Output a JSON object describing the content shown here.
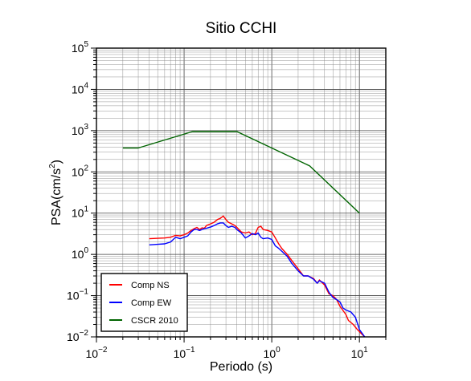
{
  "chart_data": {
    "type": "line",
    "title": "Sitio CCHI",
    "xlabel": "Periodo (s)",
    "ylabel_base": "PSA(cm/s",
    "ylabel_sup": "2",
    "ylabel_end": ")",
    "xscale": "log",
    "yscale": "log",
    "xlim": [
      0.01,
      20
    ],
    "ylim": [
      0.01,
      100000
    ],
    "grid": true,
    "legend_position": "bottom-left",
    "x_ticks": [
      {
        "value": 0.01,
        "base": "10",
        "exp": "−2"
      },
      {
        "value": 0.1,
        "base": "10",
        "exp": "−1"
      },
      {
        "value": 1,
        "base": "10",
        "exp": "0"
      },
      {
        "value": 10,
        "base": "10",
        "exp": "1"
      }
    ],
    "y_ticks": [
      {
        "value": 0.01,
        "base": "10",
        "exp": "−2"
      },
      {
        "value": 0.1,
        "base": "10",
        "exp": "−1"
      },
      {
        "value": 1,
        "base": "10",
        "exp": "0"
      },
      {
        "value": 10,
        "base": "10",
        "exp": "1"
      },
      {
        "value": 100,
        "base": "10",
        "exp": "2"
      },
      {
        "value": 1000,
        "base": "10",
        "exp": "3"
      },
      {
        "value": 10000,
        "base": "10",
        "exp": "4"
      },
      {
        "value": 100000,
        "base": "10",
        "exp": "5"
      }
    ],
    "series": [
      {
        "name": "Comp NS",
        "color": "#ff0000",
        "points": [
          [
            0.04,
            2.4
          ],
          [
            0.05,
            2.45
          ],
          [
            0.06,
            2.5
          ],
          [
            0.07,
            2.6
          ],
          [
            0.08,
            2.9
          ],
          [
            0.09,
            2.8
          ],
          [
            0.1,
            3.0
          ],
          [
            0.11,
            3.3
          ],
          [
            0.12,
            3.8
          ],
          [
            0.13,
            4.2
          ],
          [
            0.14,
            4.5
          ],
          [
            0.15,
            4.0
          ],
          [
            0.16,
            4.4
          ],
          [
            0.17,
            4.3
          ],
          [
            0.18,
            5.0
          ],
          [
            0.2,
            5.5
          ],
          [
            0.22,
            6.0
          ],
          [
            0.24,
            7.0
          ],
          [
            0.26,
            7.5
          ],
          [
            0.28,
            8.5
          ],
          [
            0.3,
            7.0
          ],
          [
            0.32,
            6.0
          ],
          [
            0.35,
            5.5
          ],
          [
            0.38,
            5.0
          ],
          [
            0.4,
            4.5
          ],
          [
            0.45,
            3.5
          ],
          [
            0.5,
            3.3
          ],
          [
            0.55,
            3.5
          ],
          [
            0.6,
            3.0
          ],
          [
            0.65,
            3.2
          ],
          [
            0.7,
            4.5
          ],
          [
            0.75,
            4.8
          ],
          [
            0.8,
            4.0
          ],
          [
            0.9,
            3.8
          ],
          [
            1.0,
            3.5
          ],
          [
            1.1,
            2.5
          ],
          [
            1.2,
            1.8
          ],
          [
            1.3,
            1.4
          ],
          [
            1.5,
            1.0
          ],
          [
            1.7,
            0.7
          ],
          [
            2.0,
            0.45
          ],
          [
            2.3,
            0.3
          ],
          [
            2.6,
            0.3
          ],
          [
            3.0,
            0.26
          ],
          [
            3.3,
            0.2
          ],
          [
            3.5,
            0.24
          ],
          [
            4.0,
            0.18
          ],
          [
            4.5,
            0.11
          ],
          [
            5.0,
            0.1
          ],
          [
            5.5,
            0.08
          ],
          [
            6.0,
            0.055
          ],
          [
            7.0,
            0.035
          ],
          [
            7.5,
            0.025
          ],
          [
            8.5,
            0.02
          ],
          [
            9.5,
            0.015
          ],
          [
            10.5,
            0.012
          ],
          [
            11.5,
            0.01
          ]
        ]
      },
      {
        "name": "Comp EW",
        "color": "#0000ff",
        "points": [
          [
            0.04,
            1.7
          ],
          [
            0.05,
            1.75
          ],
          [
            0.06,
            1.8
          ],
          [
            0.07,
            2.0
          ],
          [
            0.08,
            2.6
          ],
          [
            0.09,
            2.4
          ],
          [
            0.1,
            2.6
          ],
          [
            0.11,
            2.8
          ],
          [
            0.12,
            3.5
          ],
          [
            0.13,
            4.0
          ],
          [
            0.14,
            4.0
          ],
          [
            0.15,
            3.8
          ],
          [
            0.16,
            4.0
          ],
          [
            0.17,
            4.2
          ],
          [
            0.18,
            4.3
          ],
          [
            0.2,
            4.6
          ],
          [
            0.22,
            5.0
          ],
          [
            0.24,
            5.5
          ],
          [
            0.26,
            5.8
          ],
          [
            0.28,
            5.8
          ],
          [
            0.3,
            5.0
          ],
          [
            0.32,
            4.5
          ],
          [
            0.35,
            4.8
          ],
          [
            0.38,
            4.5
          ],
          [
            0.4,
            4.0
          ],
          [
            0.45,
            3.3
          ],
          [
            0.5,
            2.5
          ],
          [
            0.55,
            2.8
          ],
          [
            0.6,
            3.2
          ],
          [
            0.65,
            3.0
          ],
          [
            0.7,
            3.3
          ],
          [
            0.75,
            2.6
          ],
          [
            0.8,
            2.4
          ],
          [
            0.9,
            2.5
          ],
          [
            1.0,
            2.3
          ],
          [
            1.1,
            1.6
          ],
          [
            1.2,
            1.4
          ],
          [
            1.3,
            1.2
          ],
          [
            1.5,
            0.9
          ],
          [
            1.7,
            0.6
          ],
          [
            2.0,
            0.4
          ],
          [
            2.3,
            0.3
          ],
          [
            2.6,
            0.3
          ],
          [
            3.0,
            0.25
          ],
          [
            3.3,
            0.2
          ],
          [
            3.5,
            0.23
          ],
          [
            4.0,
            0.2
          ],
          [
            4.5,
            0.12
          ],
          [
            5.0,
            0.09
          ],
          [
            5.5,
            0.08
          ],
          [
            6.0,
            0.07
          ],
          [
            6.5,
            0.05
          ],
          [
            7.0,
            0.045
          ],
          [
            8.0,
            0.04
          ],
          [
            9.0,
            0.03
          ],
          [
            10.0,
            0.015
          ],
          [
            11.5,
            0.01
          ]
        ]
      },
      {
        "name": "CSCR 2010",
        "color": "#006400",
        "points": [
          [
            0.02,
            380
          ],
          [
            0.03,
            380
          ],
          [
            0.125,
            950
          ],
          [
            0.4,
            950
          ],
          [
            2.7,
            140
          ],
          [
            10.0,
            10
          ]
        ]
      }
    ]
  }
}
